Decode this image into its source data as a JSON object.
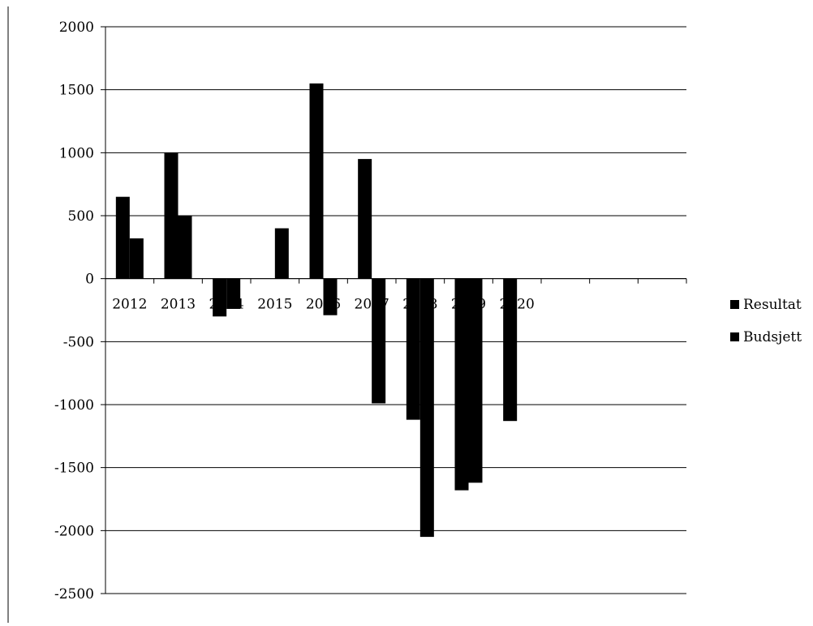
{
  "chart_data": {
    "type": "bar",
    "categories": [
      "2012",
      "2013",
      "2014",
      "2015",
      "2016",
      "2017",
      "2018",
      "2019",
      "2020"
    ],
    "series": [
      {
        "name": "Resultat",
        "values": [
          650,
          1000,
          -300,
          0,
          1550,
          950,
          -1120,
          -1680,
          -1130
        ]
      },
      {
        "name": "Budsjett",
        "values": [
          320,
          500,
          -240,
          400,
          -290,
          -990,
          -2050,
          -1620,
          0
        ]
      }
    ],
    "ylim": [
      -2500,
      2000
    ],
    "yticks": [
      2000,
      1500,
      1000,
      500,
      0,
      -500,
      -1000,
      -1500,
      -2000,
      -2500
    ],
    "grid": true,
    "legend": "right",
    "colors": {
      "bar": "#000000",
      "grid": "#000000",
      "background": "#ffffff"
    }
  }
}
